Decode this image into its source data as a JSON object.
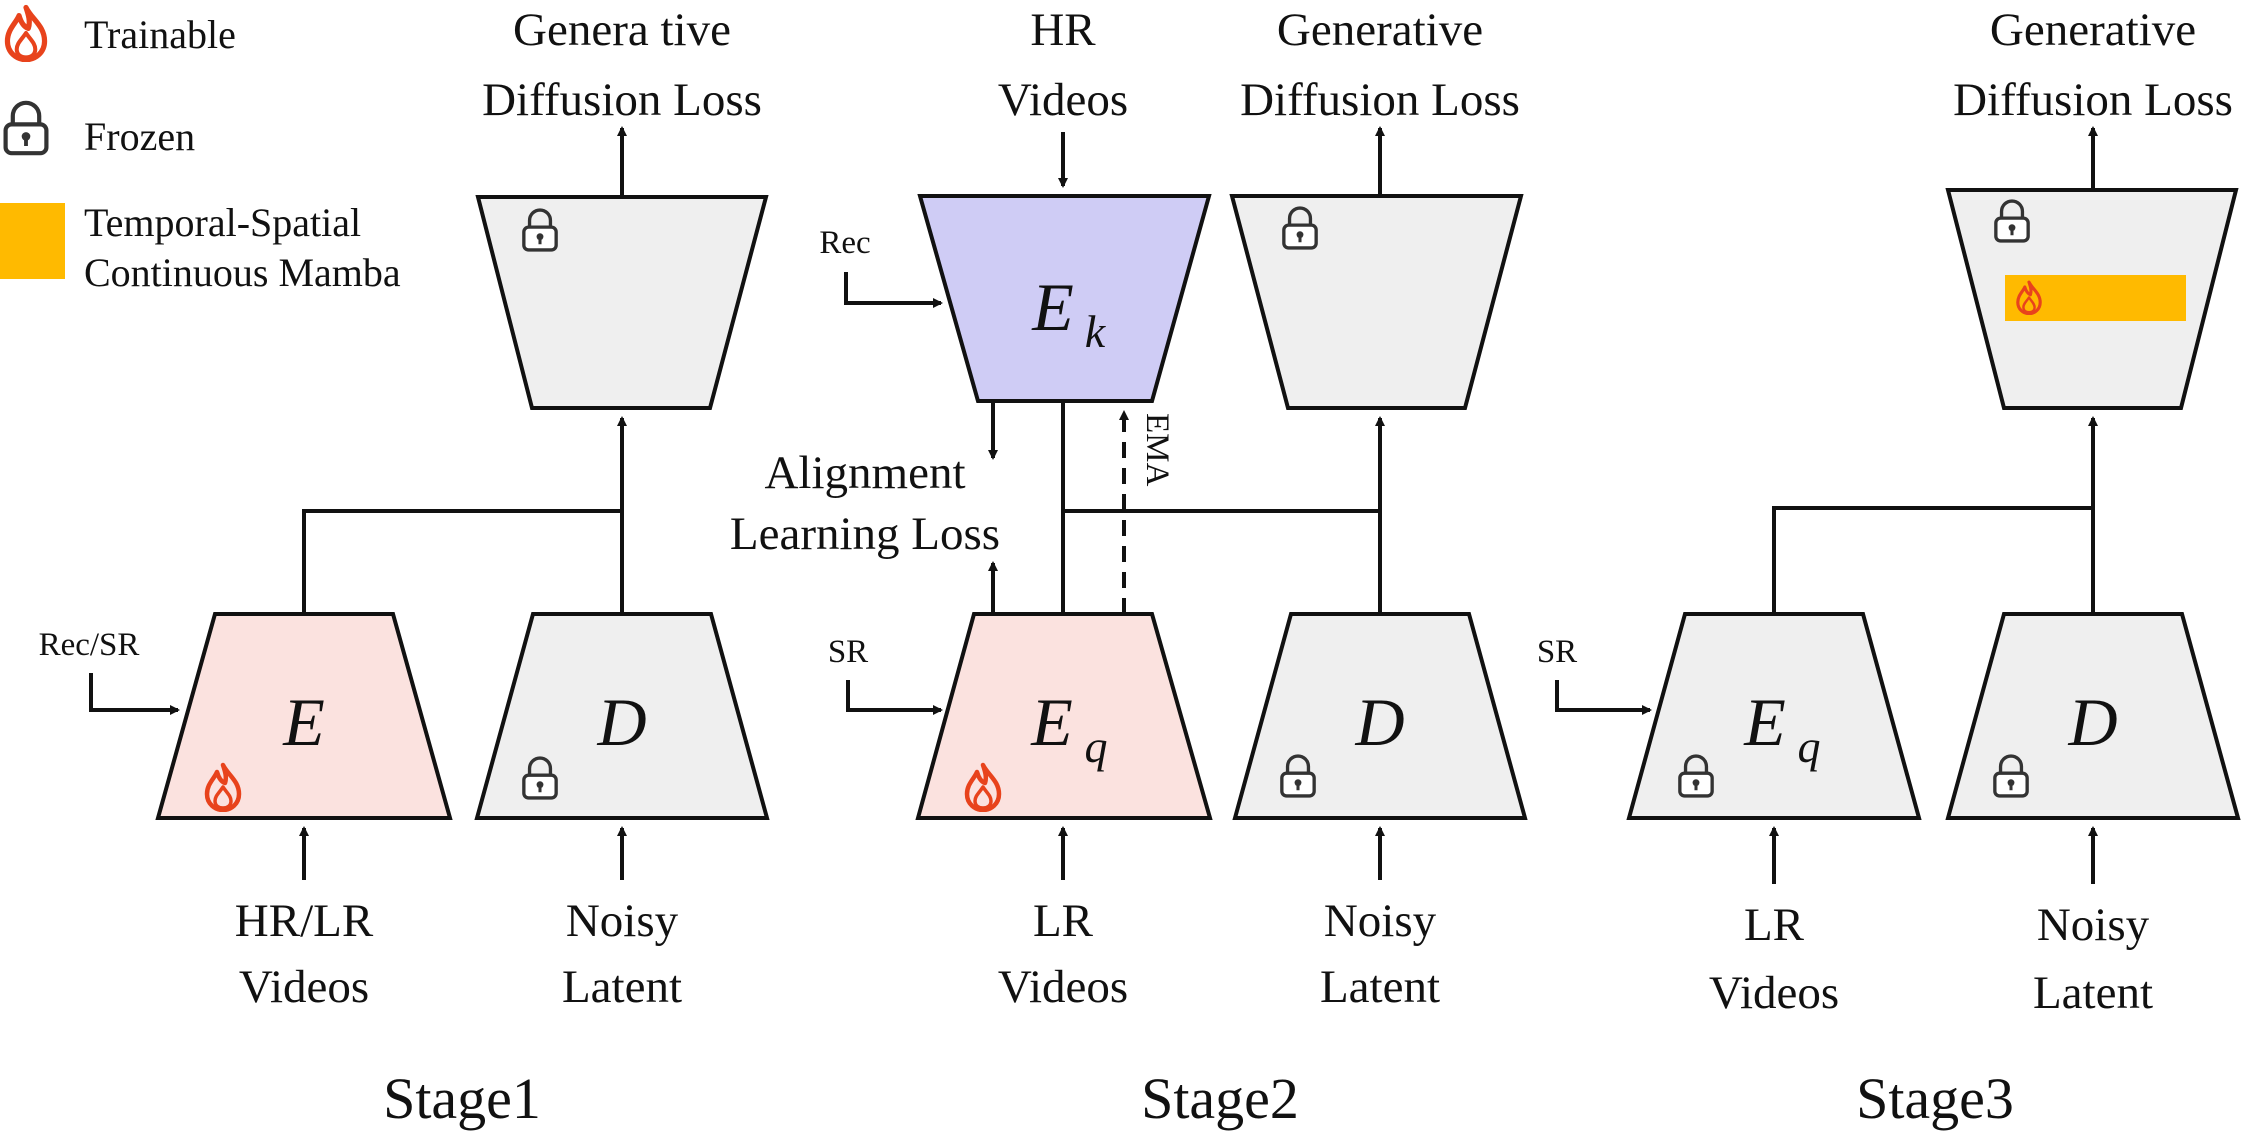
{
  "colors": {
    "trainable_fill": "#FBE2DF",
    "frozen_fill": "#EFEFEF",
    "hr_encoder_fill": "#CFCCF5",
    "mamba_color": "#FFBA00",
    "flame_color": "#E8431C",
    "stroke": "#111111"
  },
  "icons": {
    "trainable": "flame-icon",
    "frozen": "lock-icon"
  },
  "legend": {
    "trainable": "Trainable",
    "frozen": "Frozen",
    "mamba_line1": "Temporal-Spatial",
    "mamba_line2": "Continuous Mamba"
  },
  "stage1": {
    "loss_line1": "Genera tive",
    "loss_line2": "Diffusion Loss",
    "input_label": "Rec/SR",
    "encoder_symbol": "E",
    "decoder_symbol": "D",
    "encoder_in_line1": "HR/LR",
    "encoder_in_line2": "Videos",
    "decoder_in_line1": "Noisy",
    "decoder_in_line2": "Latent",
    "title": "Stage1"
  },
  "stage2": {
    "hr_line1": "HR",
    "hr_line2": "Videos",
    "loss_line1": "Generative",
    "loss_line2": "Diffusion Loss",
    "rec_label": "Rec",
    "ek_symbol": "E",
    "ek_sub": "k",
    "ema_label": "EMA",
    "align_line1": "Alignment",
    "align_line2": "Learning Loss",
    "sr_label": "SR",
    "eq_symbol": "E",
    "eq_sub": "q",
    "decoder_symbol": "D",
    "encoder_in_line1": "LR",
    "encoder_in_line2": "Videos",
    "decoder_in_line1": "Noisy",
    "decoder_in_line2": "Latent",
    "title": "Stage2"
  },
  "stage3": {
    "loss_line1": "Generative",
    "loss_line2": "Diffusion Loss",
    "sr_label": "SR",
    "eq_symbol": "E",
    "eq_sub": "q",
    "decoder_symbol": "D",
    "encoder_in_line1": "LR",
    "encoder_in_line2": "Videos",
    "decoder_in_line1": "Noisy",
    "decoder_in_line2": "Latent",
    "title": "Stage3"
  }
}
